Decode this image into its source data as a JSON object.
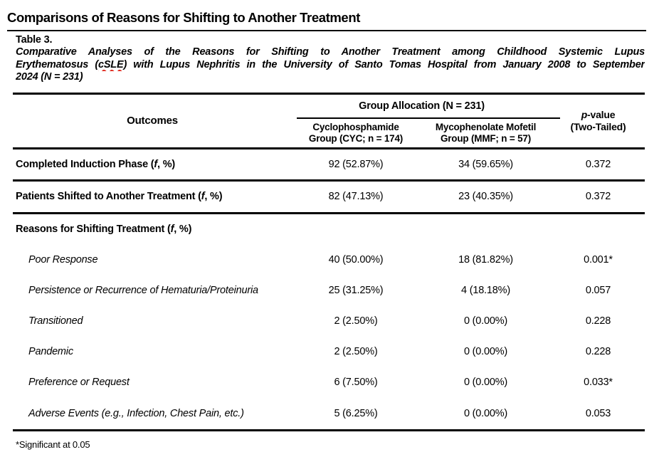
{
  "document": {
    "heading": "Comparisons of Reasons for Shifting to Another Treatment",
    "table_label": "Table 3.",
    "caption": {
      "full_text": "Comparative Analyses of the Reasons for Shifting to Another Treatment among Childhood Systemic Lupus Erythematosus (cSLE) with Lupus Nephritis in the University of Santo Tomas Hospital from January 2008 to September 2024 (N = 231)",
      "line1": "Comparative Analyses of the Reasons for Shifting to Another Treatment among Childhood Systemic Lupus",
      "line2_pre": "Erythematosus (",
      "line2_flagged_word": "cSLE",
      "line2_post": ") with Lupus Nephritis in the University of Santo Tomas Hospital from January 2008 to September",
      "line3": "2024 (N = 231)"
    },
    "footnote": "*Significant at 0.05"
  },
  "colors": {
    "spellcheck_underline": "#e02b20",
    "text": "#000000",
    "background": "#ffffff"
  },
  "table": {
    "columns": {
      "outcomes": "Outcomes",
      "group_allocation": "Group Allocation (N = 231)",
      "cyc_line1": "Cyclophosphamide",
      "cyc_line2": "Group (CYC; n = 174)",
      "mmf_line1": "Mycophenolate Mofetil",
      "mmf_line2": "Group (MMF; n = 57)",
      "p_italic": "p",
      "p_rest": "-value",
      "p_line2": "(Two-Tailed)"
    },
    "rows": [
      {
        "label_pre": "Completed Induction Phase (",
        "label_f": "f",
        "label_post": ", %)",
        "cyc": "92 (52.87%)",
        "mmf": "34 (59.65%)",
        "p": "0.372"
      },
      {
        "label_pre": "Patients Shifted to Another Treatment (",
        "label_f": "f",
        "label_post": ", %)",
        "cyc": "82 (47.13%)",
        "mmf": "23 (40.35%)",
        "p": "0.372"
      },
      {
        "label_pre": "Reasons for Shifting Treatment (",
        "label_f": "f",
        "label_post": ", %)",
        "cyc": "",
        "mmf": "",
        "p": ""
      },
      {
        "label_pre": "Poor Response",
        "cyc": "40 (50.00%)",
        "mmf": "18 (81.82%)",
        "p": "0.001*"
      },
      {
        "label_pre": "Persistence or Recurrence of Hematuria/Proteinuria",
        "cyc": "25 (31.25%)",
        "mmf": "4 (18.18%)",
        "p": "0.057"
      },
      {
        "label_pre": "Transitioned",
        "cyc": "2 (2.50%)",
        "mmf": "0 (0.00%)",
        "p": "0.228"
      },
      {
        "label_pre": "Pandemic",
        "cyc": "2 (2.50%)",
        "mmf": "0 (0.00%)",
        "p": "0.228"
      },
      {
        "label_pre": "Preference or Request",
        "cyc": "6 (7.50%)",
        "mmf": "0 (0.00%)",
        "p": "0.033*"
      },
      {
        "label_pre": "Adverse Events (e.g., Infection, Chest Pain, etc.)",
        "cyc": "5 (6.25%)",
        "mmf": "0 (0.00%)",
        "p": "0.053"
      }
    ]
  }
}
